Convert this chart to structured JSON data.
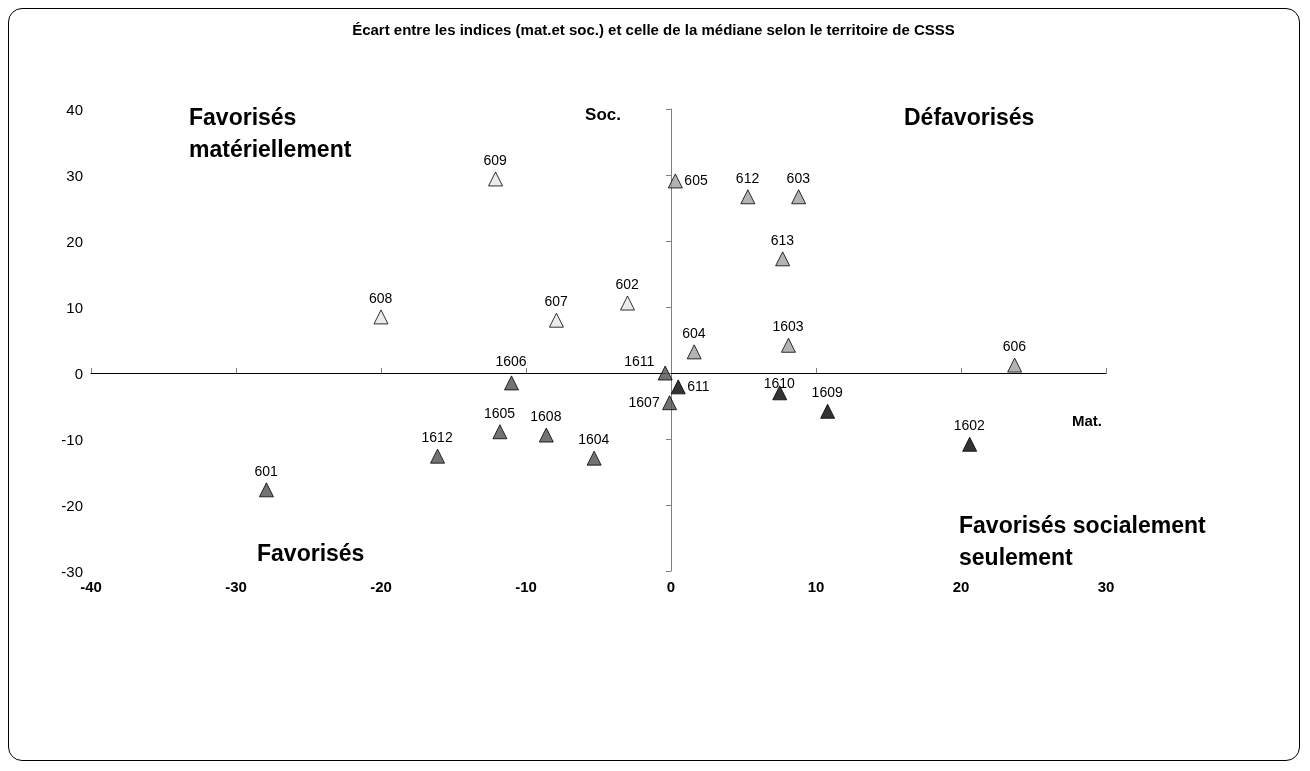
{
  "chart_data": {
    "type": "scatter",
    "title": "Écart entre les indices (mat.et soc.) et celle de la médiane selon le territoire de CSSS",
    "xlabel": "Mat.",
    "ylabel": "Soc.",
    "marker": "triangle",
    "grid": false,
    "xlim": [
      -40,
      30
    ],
    "xticks": [
      -40,
      -30,
      -20,
      -10,
      0,
      10,
      20,
      30
    ],
    "ylim": [
      -30,
      40
    ],
    "yticks": [
      -30,
      -20,
      -10,
      0,
      10,
      20,
      30,
      40
    ],
    "annotations": [
      "Favorisés matériellement",
      "Défavorisés",
      "Favorisés",
      "Favorisés socialement seulement",
      {
        "text": "609",
        "x": -12.1,
        "y": 29.4
      },
      {
        "text": "608",
        "x": -20.0,
        "y": 8.5
      },
      {
        "text": "607",
        "x": -7.9,
        "y": 8.0
      },
      {
        "text": "602",
        "x": -3.0,
        "y": 10.6
      },
      {
        "text": "605",
        "x": 0.3,
        "y": 29.1
      },
      {
        "text": "612",
        "x": 5.3,
        "y": 26.7
      },
      {
        "text": "603",
        "x": 8.8,
        "y": 26.7
      },
      {
        "text": "613",
        "x": 7.7,
        "y": 17.3
      },
      {
        "text": "604",
        "x": 1.6,
        "y": 3.2
      },
      {
        "text": "1603",
        "x": 8.1,
        "y": 4.2
      },
      {
        "text": "606",
        "x": 23.7,
        "y": 1.2
      },
      {
        "text": "1606",
        "x": -11.0,
        "y": -1.5
      },
      {
        "text": "1605",
        "x": -11.8,
        "y": -8.9
      },
      {
        "text": "1608",
        "x": -8.6,
        "y": -9.4
      },
      {
        "text": "1604",
        "x": -5.3,
        "y": -12.9
      },
      {
        "text": "1612",
        "x": -16.1,
        "y": -12.6
      },
      {
        "text": "601",
        "x": -27.9,
        "y": -17.7
      },
      {
        "text": "1611",
        "x": -0.4,
        "y": 0
      },
      {
        "text": "1607",
        "x": -0.1,
        "y": -4.5
      },
      {
        "text": "611",
        "x": 0.5,
        "y": -2.1
      },
      {
        "text": "1610",
        "x": 7.5,
        "y": -3.0
      },
      {
        "text": "1609",
        "x": 10.8,
        "y": -5.8
      },
      {
        "text": "1602",
        "x": 20.6,
        "y": -10.8
      }
    ],
    "series": [
      {
        "color": "#e6e6e6",
        "x": [
          -12.1,
          -20.0,
          -7.9,
          -3.0
        ],
        "values": [
          29.4,
          8.5,
          8.0,
          10.6
        ]
      },
      {
        "color": "#a0a0a0",
        "x": [
          0.3,
          5.3,
          8.8,
          7.7,
          1.6,
          8.1,
          23.7
        ],
        "values": [
          29.1,
          26.7,
          26.7,
          17.3,
          3.2,
          4.2,
          1.2
        ]
      },
      {
        "color": "#505050",
        "x": [
          -11.0,
          -11.8,
          -8.6,
          -5.3,
          -16.1,
          -27.9,
          -0.4,
          -0.1
        ],
        "values": [
          -1.5,
          -8.9,
          -9.4,
          -12.9,
          -12.6,
          -17.7,
          0,
          -4.5
        ]
      },
      {
        "color": "#000000",
        "x": [
          0.5,
          7.5,
          10.8,
          20.6
        ],
        "values": [
          -2.1,
          -3.0,
          -5.8,
          -10.8
        ]
      }
    ]
  }
}
